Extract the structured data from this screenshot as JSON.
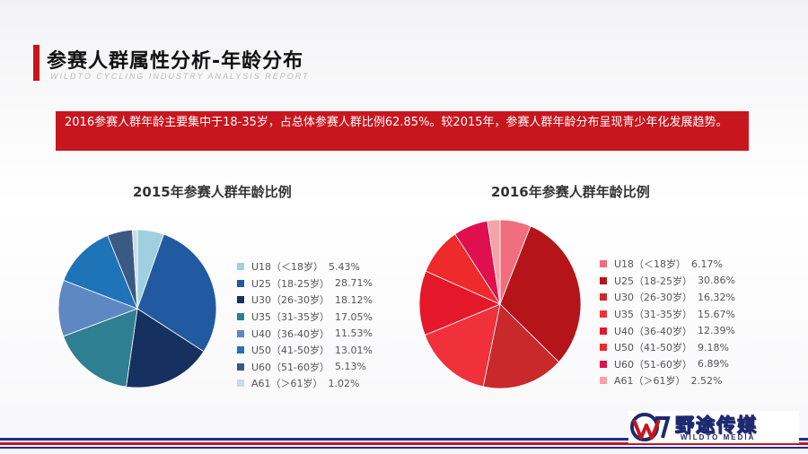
{
  "header": {
    "title": "参赛人群属性分析-年龄分布",
    "subtitle": "WILDTO CYCLING INDUSTRY ANALYSIS REPORT"
  },
  "banner": {
    "text": "2016参赛人群年龄主要集中于18-35岁，占总体参赛人群比例62.85%。较2015年，参赛人群年龄分布呈现青少年化发展趋势。"
  },
  "colors": {
    "accent": "#c8161e",
    "footer_blue": "#1e2f8f",
    "footer_red": "#c4161c"
  },
  "chart_data": [
    {
      "type": "pie",
      "title": "2015年参赛人群年龄比例",
      "legend_position": "right",
      "slices": [
        {
          "label": "U18（＜18岁）",
          "value": 5.43,
          "value_text": "5.43%",
          "color": "#9fd0e0"
        },
        {
          "label": "U25（18-25岁）",
          "value": 28.71,
          "value_text": "28.71%",
          "color": "#215aa0"
        },
        {
          "label": "U30（26-30岁）",
          "value": 18.12,
          "value_text": "18.12%",
          "color": "#16305f"
        },
        {
          "label": "U35（31-35岁）",
          "value": 17.05,
          "value_text": "17.05%",
          "color": "#2e7f92"
        },
        {
          "label": "U40（36-40岁）",
          "value": 11.53,
          "value_text": "11.53%",
          "color": "#5e88c2"
        },
        {
          "label": "U50（41-50岁）",
          "value": 13.01,
          "value_text": "13.01%",
          "color": "#1f73b7"
        },
        {
          "label": "U60（51-60岁）",
          "value": 5.13,
          "value_text": "5.13%",
          "color": "#3a5a84"
        },
        {
          "label": "A61（＞61岁）",
          "value": 1.02,
          "value_text": "1.02%",
          "color": "#c9dbe7"
        }
      ]
    },
    {
      "type": "pie",
      "title": "2016年参赛人群年龄比例",
      "legend_position": "right",
      "slices": [
        {
          "label": "U18（＜18岁）",
          "value": 6.17,
          "value_text": "6.17%",
          "color": "#f26d7d"
        },
        {
          "label": "U25（18-25岁）",
          "value": 30.86,
          "value_text": "30.86%",
          "color": "#b5141b"
        },
        {
          "label": "U30（26-30岁）",
          "value": 16.32,
          "value_text": "16.32%",
          "color": "#c9292a"
        },
        {
          "label": "U35（31-35岁）",
          "value": 15.67,
          "value_text": "15.67%",
          "color": "#f0313b"
        },
        {
          "label": "U40（36-40岁）",
          "value": 12.39,
          "value_text": "12.39%",
          "color": "#e5182b"
        },
        {
          "label": "U50（41-50岁）",
          "value": 9.18,
          "value_text": "9.18%",
          "color": "#ee2a2a"
        },
        {
          "label": "U60（51-60岁）",
          "value": 6.89,
          "value_text": "6.89%",
          "color": "#e0104f"
        },
        {
          "label": "A61（＞61岁）",
          "value": 2.52,
          "value_text": "2.52%",
          "color": "#f4a3a7"
        }
      ]
    }
  ],
  "footer": {
    "logo_name": "野途传媒",
    "logo_sub": "WILDTO MEDIA"
  }
}
